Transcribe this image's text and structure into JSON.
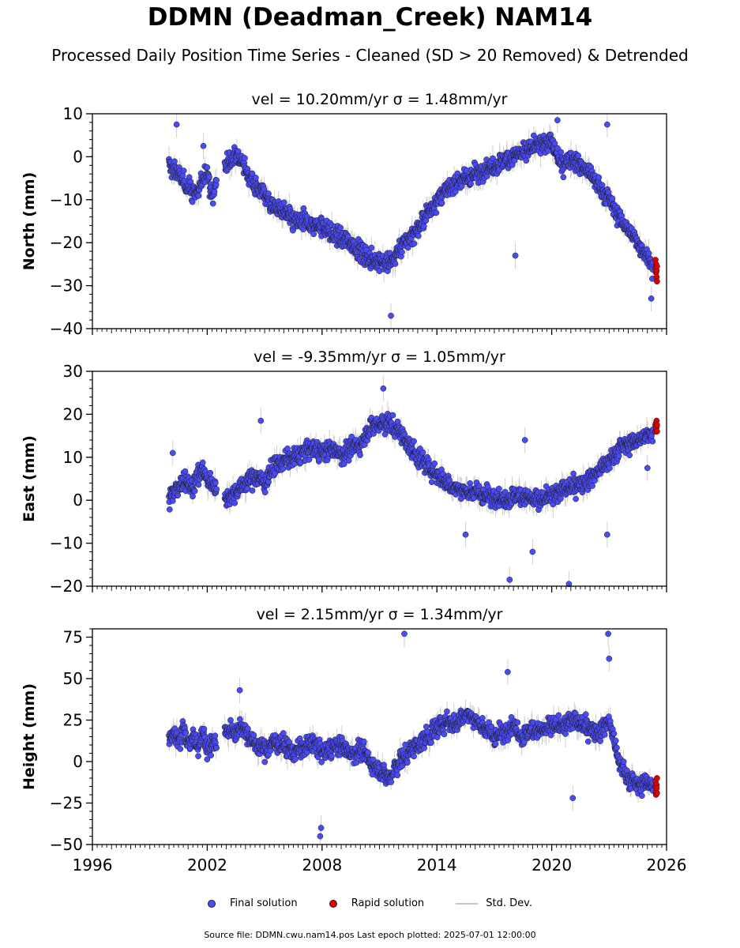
{
  "title": "DDMN (Deadman_Creek) NAM14",
  "subtitle": "Processed Daily Position Time Series - Cleaned (SD > 20 Removed) & Detrended",
  "footer": {
    "source_label": "Source file: DDMN.cwu.nam14.pos  Last epoch plotted: 2025-07-01 12:00:00"
  },
  "legend": {
    "final": "Final solution",
    "rapid": "Rapid solution",
    "std": "Std. Dev."
  },
  "colors": {
    "final": "#4b4bf5",
    "rapid": "#e00000",
    "std": "#c8c8c8",
    "marker_edge": "#1a1a1a"
  },
  "chart_data": [
    {
      "type": "scatter",
      "title": "vel = 10.20mm/yr   σ = 1.48mm/yr",
      "ylabel": "North (mm)",
      "xlim": [
        1996,
        2026
      ],
      "ylim": [
        -40,
        10
      ],
      "yticks": [
        10,
        0,
        -10,
        -20,
        -30,
        -40
      ],
      "xticks": [
        1996,
        2002,
        2008,
        2014,
        2020,
        2026
      ],
      "series": [
        {
          "role": "final",
          "x": [
            2000.0,
            2000.25,
            2000.5,
            2000.75,
            2001.0,
            2001.25,
            2001.5,
            2001.75,
            2002.0,
            2002.25,
            2002.5,
            2002.9,
            2003.25,
            2003.5,
            2003.75,
            2004.0,
            2004.5,
            2005.0,
            2005.5,
            2006.0,
            2006.5,
            2007.0,
            2007.5,
            2008.0,
            2008.5,
            2009.0,
            2009.5,
            2010.0,
            2010.5,
            2011.0,
            2011.5,
            2012.0,
            2012.5,
            2013.0,
            2013.5,
            2014.0,
            2014.5,
            2015.0,
            2015.5,
            2016.0,
            2016.5,
            2017.0,
            2017.5,
            2018.0,
            2018.5,
            2019.0,
            2019.5,
            2020.0,
            2020.5,
            2021.0,
            2021.5,
            2022.0,
            2022.5,
            2023.0,
            2023.5,
            2024.0,
            2024.5,
            2025.0,
            2025.3
          ],
          "y": [
            -2,
            -3,
            -4,
            -6,
            -7,
            -8,
            -9,
            -5,
            -3,
            -10,
            -5,
            -2,
            -1,
            1,
            -1,
            -3,
            -7,
            -9,
            -12,
            -13,
            -15,
            -15,
            -16,
            -16,
            -18,
            -19,
            -20,
            -22,
            -24,
            -24,
            -25,
            -22,
            -19,
            -17,
            -13,
            -10,
            -8,
            -6,
            -5,
            -4,
            -3,
            -2,
            -1,
            0,
            1,
            2,
            3,
            3,
            -2,
            0,
            -2,
            -4,
            -7,
            -10,
            -14,
            -17,
            -20,
            -23,
            -26
          ]
        },
        {
          "role": "final-outlier",
          "x": [
            2000.4,
            2001.8,
            2011.6,
            2018.1,
            2020.3,
            2022.9,
            2025.2
          ],
          "y": [
            7.5,
            2.5,
            -37,
            -23,
            8.5,
            7.5,
            -33
          ]
        },
        {
          "role": "rapid",
          "x": [
            2025.42,
            2025.42,
            2025.45,
            2025.45,
            2025.48,
            2025.48,
            2025.5,
            2025.5
          ],
          "y": [
            -24,
            -26,
            -25,
            -27,
            -28,
            -26.5,
            -25.5,
            -29
          ]
        }
      ]
    },
    {
      "type": "scatter",
      "title": "vel = -9.35mm/yr   σ = 1.05mm/yr",
      "ylabel": "East (mm)",
      "xlim": [
        1996,
        2026
      ],
      "ylim": [
        -20,
        30
      ],
      "yticks": [
        30,
        20,
        10,
        0,
        -10,
        -20
      ],
      "xticks": [
        1996,
        2002,
        2008,
        2014,
        2020,
        2026
      ],
      "series": [
        {
          "role": "final",
          "x": [
            2000.0,
            2000.25,
            2000.5,
            2000.75,
            2001.0,
            2001.25,
            2001.5,
            2001.75,
            2002.0,
            2002.25,
            2002.5,
            2002.9,
            2003.25,
            2003.5,
            2003.75,
            2004.0,
            2004.5,
            2005.0,
            2005.5,
            2006.0,
            2006.5,
            2007.0,
            2007.5,
            2008.0,
            2008.5,
            2009.0,
            2009.5,
            2010.0,
            2010.5,
            2011.0,
            2011.5,
            2012.0,
            2012.5,
            2013.0,
            2013.5,
            2014.0,
            2014.5,
            2015.0,
            2015.5,
            2016.0,
            2016.5,
            2017.0,
            2017.5,
            2018.0,
            2018.5,
            2019.0,
            2019.5,
            2020.0,
            2020.5,
            2021.0,
            2021.5,
            2022.0,
            2022.5,
            2023.0,
            2023.5,
            2024.0,
            2024.5,
            2025.0,
            2025.3
          ],
          "y": [
            0,
            2,
            3,
            4,
            5,
            2,
            6,
            7,
            5,
            4,
            3,
            0,
            1,
            2,
            3,
            4,
            6,
            4,
            8,
            9,
            10,
            11,
            12,
            11,
            12,
            11,
            12,
            13,
            17,
            18,
            18,
            16,
            13,
            10,
            8,
            6,
            4,
            3,
            2,
            2,
            1,
            1,
            0,
            1,
            1,
            0,
            0,
            1,
            2,
            3,
            4,
            5,
            7,
            9,
            12,
            13,
            14,
            15,
            16
          ]
        },
        {
          "role": "final-outlier",
          "x": [
            2000.2,
            2004.8,
            2011.2,
            2015.5,
            2017.8,
            2018.6,
            2019.0,
            2020.9,
            2022.9,
            2025.0
          ],
          "y": [
            11,
            18.5,
            26,
            -8,
            -18.5,
            14,
            -12,
            -19.5,
            -8,
            7.5
          ]
        },
        {
          "role": "rapid",
          "x": [
            2025.42,
            2025.42,
            2025.45,
            2025.45,
            2025.48,
            2025.48,
            2025.5,
            2025.5
          ],
          "y": [
            16,
            17.5,
            18,
            16.5,
            17,
            18.5,
            16,
            17.5
          ]
        }
      ]
    },
    {
      "type": "scatter",
      "title": "vel = 2.15mm/yr   σ = 1.34mm/yr",
      "ylabel": "Height (mm)",
      "xlim": [
        1996,
        2026
      ],
      "ylim": [
        -50,
        80
      ],
      "yticks": [
        75,
        50,
        25,
        0,
        -25,
        -50
      ],
      "xticks": [
        1996,
        2002,
        2008,
        2014,
        2020,
        2026
      ],
      "series": [
        {
          "role": "final",
          "x": [
            2000.0,
            2000.25,
            2000.5,
            2000.75,
            2001.0,
            2001.25,
            2001.5,
            2001.75,
            2002.0,
            2002.25,
            2002.5,
            2002.9,
            2003.25,
            2003.5,
            2003.75,
            2004.0,
            2004.5,
            2005.0,
            2005.5,
            2006.0,
            2006.5,
            2007.0,
            2007.5,
            2008.0,
            2008.5,
            2009.0,
            2009.5,
            2010.0,
            2010.5,
            2011.0,
            2011.5,
            2012.0,
            2012.5,
            2013.0,
            2013.5,
            2014.0,
            2014.5,
            2015.0,
            2015.5,
            2016.0,
            2016.5,
            2017.0,
            2017.5,
            2018.0,
            2018.5,
            2019.0,
            2019.5,
            2020.0,
            2020.5,
            2021.0,
            2021.5,
            2022.0,
            2022.5,
            2023.0,
            2023.5,
            2024.0,
            2024.5,
            2025.0,
            2025.3
          ],
          "y": [
            15,
            18,
            12,
            20,
            10,
            15,
            8,
            20,
            5,
            12,
            10,
            18,
            20,
            17,
            22,
            18,
            10,
            8,
            12,
            10,
            5,
            8,
            12,
            5,
            8,
            10,
            5,
            8,
            0,
            -5,
            -10,
            0,
            5,
            10,
            15,
            20,
            25,
            22,
            30,
            25,
            20,
            15,
            18,
            22,
            15,
            20,
            18,
            22,
            20,
            25,
            22,
            20,
            18,
            25,
            0,
            -10,
            -15,
            -12,
            -15
          ]
        },
        {
          "role": "final-outlier",
          "x": [
            2003.7,
            2007.9,
            2007.95,
            2012.3,
            2013.5,
            2017.7,
            2021.1,
            2022.95,
            2023.0
          ],
          "y": [
            43,
            -45,
            -40,
            77,
            18,
            54,
            -22,
            77,
            62
          ]
        },
        {
          "role": "rapid",
          "x": [
            2025.42,
            2025.42,
            2025.45,
            2025.45,
            2025.48,
            2025.48,
            2025.5,
            2025.5
          ],
          "y": [
            -12,
            -15,
            -18,
            -20,
            -14,
            -16,
            -10,
            -19
          ]
        }
      ]
    }
  ]
}
